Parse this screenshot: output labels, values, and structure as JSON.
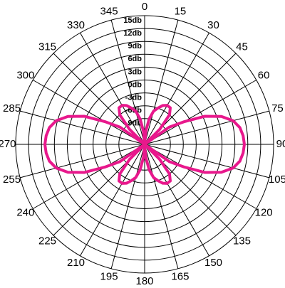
{
  "chart_data": {
    "type": "polar-line",
    "theta": [
      0,
      5,
      10,
      15,
      20,
      25,
      30,
      35,
      40,
      45,
      50,
      55,
      60,
      65,
      70,
      75,
      80,
      85,
      90,
      95,
      100,
      105,
      110,
      115,
      120,
      125,
      130,
      135,
      140,
      145,
      150,
      155,
      160,
      165,
      170,
      175,
      180,
      185,
      190,
      195,
      200,
      205,
      210,
      215,
      220,
      225,
      230,
      235,
      240,
      245,
      250,
      255,
      260,
      265,
      270,
      275,
      280,
      285,
      290,
      295,
      300,
      305,
      310,
      315,
      320,
      325,
      330,
      335,
      340,
      345,
      350,
      355
    ],
    "values": [
      -15,
      -12,
      -9,
      -7,
      -6,
      -5,
      -4.5,
      -4.6,
      -6,
      -10,
      -15,
      -8,
      -4.5,
      0.5,
      4,
      6.3,
      7.5,
      8,
      8.2,
      8,
      7.5,
      6.3,
      4,
      0.5,
      -4.5,
      -8,
      -15,
      -10,
      -6,
      -4.6,
      -4.5,
      -5,
      -6,
      -7,
      -9,
      -12,
      -15,
      -12,
      -9,
      -7,
      -6,
      -5,
      -4.5,
      -4.6,
      -6,
      -10,
      -15,
      -8,
      -4.5,
      0.5,
      4,
      6.3,
      7.5,
      8,
      8.2,
      8,
      7.5,
      6.3,
      4,
      0.5,
      -4.5,
      -8,
      -15,
      -10,
      -6,
      -4.6,
      -4.5,
      -5,
      -6,
      -7,
      -9,
      -12
    ],
    "color": "#e8188c",
    "rlim": [
      -15,
      15
    ],
    "rticks": [
      {
        "value": -9,
        "label": "-9db"
      },
      {
        "value": -6,
        "label": "-6db"
      },
      {
        "value": -3,
        "label": "-3db"
      },
      {
        "value": 0,
        "label": "0db"
      },
      {
        "value": 3,
        "label": "3db"
      },
      {
        "value": 6,
        "label": "6db"
      },
      {
        "value": 9,
        "label": "9db"
      },
      {
        "value": 12,
        "label": "12db"
      },
      {
        "value": 15,
        "label": "15db"
      }
    ],
    "thetaticks": [
      0,
      15,
      30,
      45,
      60,
      75,
      90,
      105,
      120,
      135,
      150,
      165,
      180,
      195,
      210,
      225,
      240,
      255,
      270,
      285,
      300,
      315,
      330,
      345
    ]
  }
}
